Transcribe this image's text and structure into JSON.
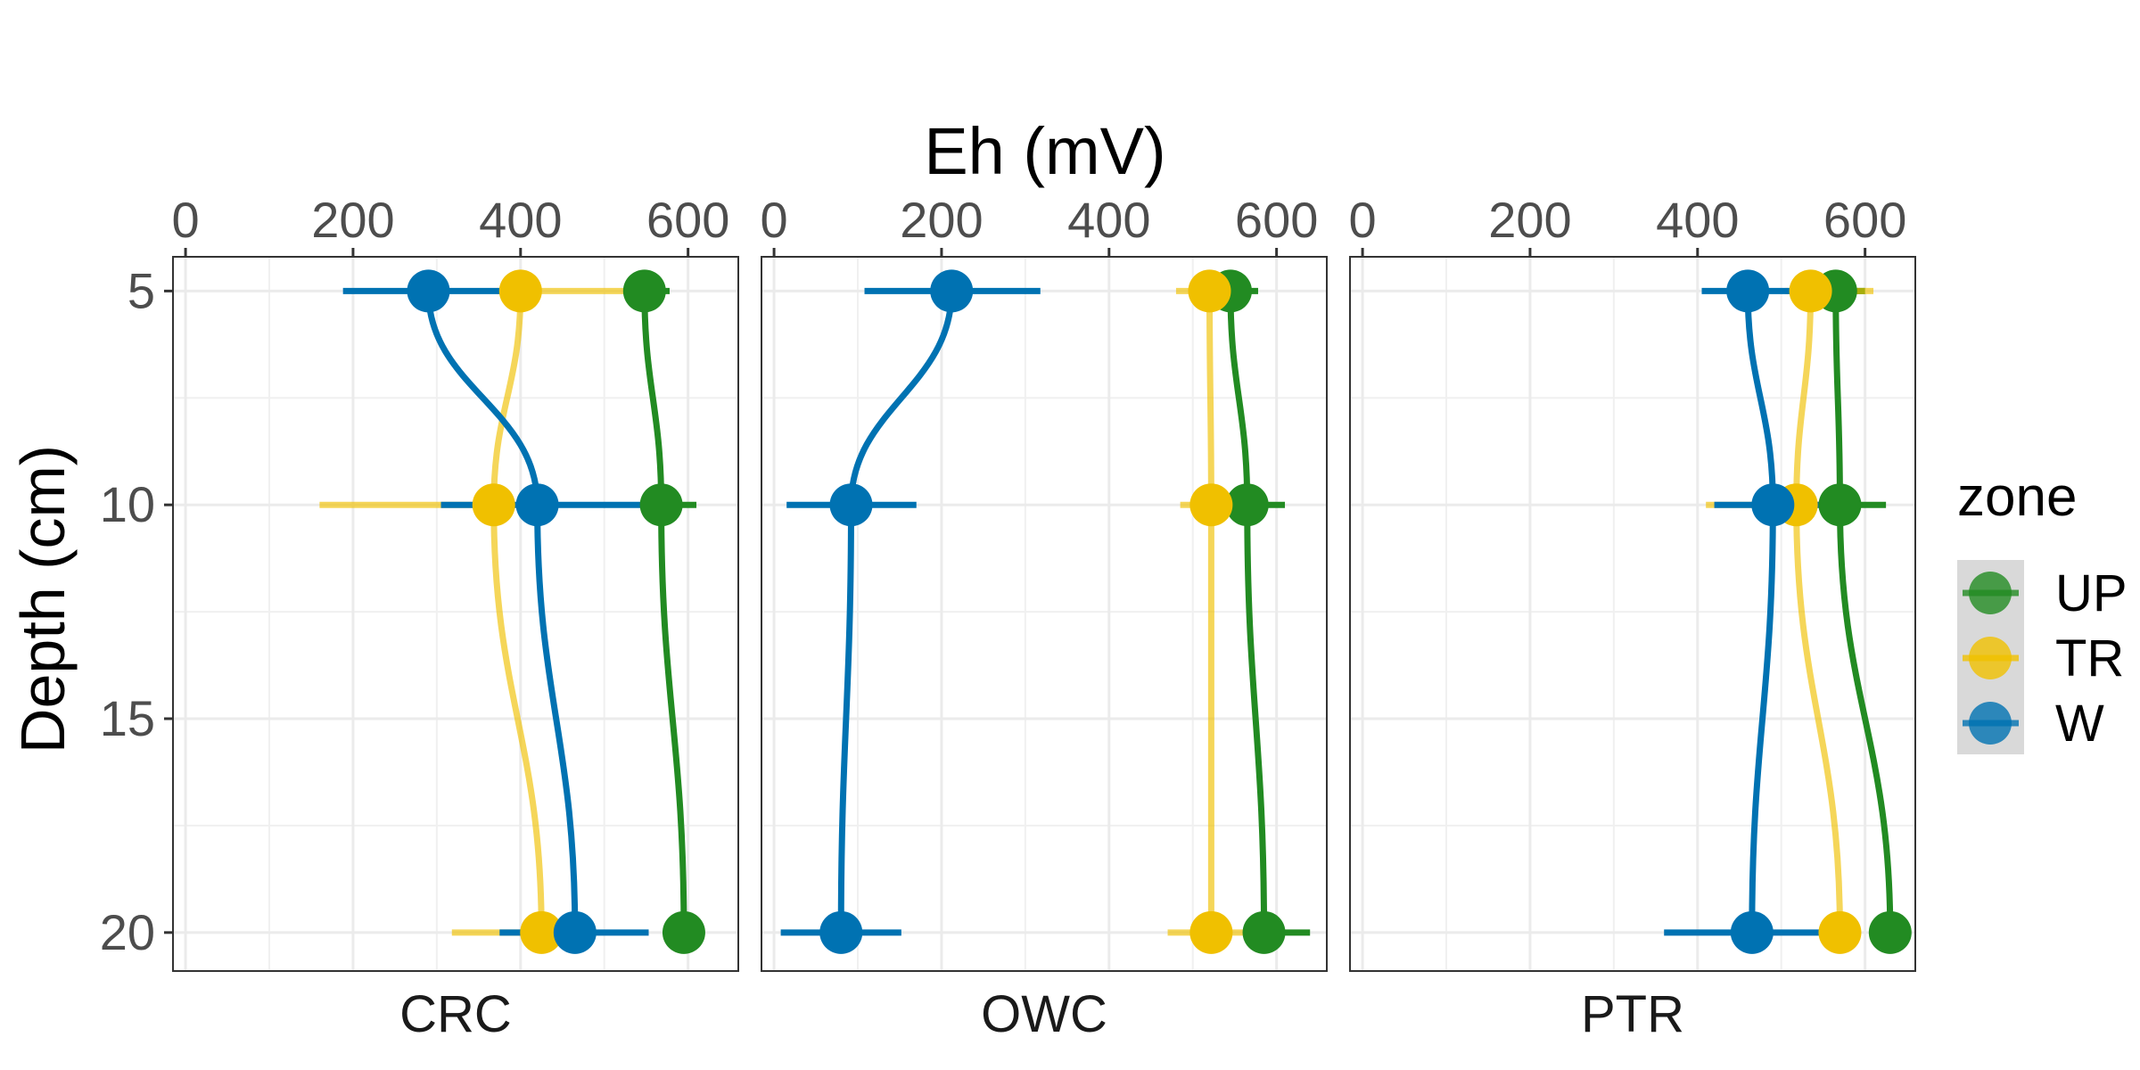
{
  "chart_data": {
    "type": "line",
    "x_title": "Eh (mV)",
    "y_title": "Depth (cm)",
    "xlim": [
      -15,
      660
    ],
    "ylim": [
      4.2,
      20.9
    ],
    "x_ticks": [
      0,
      200,
      400,
      600
    ],
    "y_ticks": [
      5,
      10,
      15,
      20
    ],
    "depths": [
      5,
      10,
      20
    ],
    "legend": {
      "title": "zone",
      "placement": "right",
      "items": [
        {
          "name": "UP",
          "color": "#228b22"
        },
        {
          "name": "TR",
          "color": "#f0c000"
        },
        {
          "name": "W",
          "color": "#0072b2"
        }
      ]
    },
    "facets": [
      {
        "label": "CRC",
        "series": [
          {
            "name": "UP",
            "color": "#228b22",
            "x": [
              548,
              568,
              595
            ],
            "err": [
              [
                528,
                578
              ],
              [
                553,
                610
              ],
              null
            ]
          },
          {
            "name": "TR",
            "color": "#f0c000",
            "x": [
              400,
              368,
              425
            ],
            "err": [
              [
                372,
                530
              ],
              [
                160,
                380
              ],
              [
                318,
                440
              ]
            ]
          },
          {
            "name": "W",
            "color": "#0072b2",
            "x": [
              290,
              420,
              465
            ],
            "err": [
              [
                188,
                400
              ],
              [
                305,
                553
              ],
              [
                375,
                553
              ]
            ]
          }
        ]
      },
      {
        "label": "OWC",
        "series": [
          {
            "name": "UP",
            "color": "#228b22",
            "x": [
              545,
              565,
              585
            ],
            "err": [
              [
                510,
                578
              ],
              [
                525,
                610
              ],
              [
                560,
                640
              ]
            ]
          },
          {
            "name": "TR",
            "color": "#f0c000",
            "x": [
              520,
              522,
              522
            ],
            "err": [
              [
                480,
                560
              ],
              [
                485,
                565
              ],
              [
                470,
                560
              ]
            ]
          },
          {
            "name": "W",
            "color": "#0072b2",
            "x": [
              212,
              92,
              80
            ],
            "err": [
              [
                108,
                318
              ],
              [
                15,
                170
              ],
              [
                8,
                152
              ]
            ]
          }
        ]
      },
      {
        "label": "PTR",
        "series": [
          {
            "name": "UP",
            "color": "#228b22",
            "x": [
              565,
              570,
              630
            ],
            "err": [
              [
                530,
                600
              ],
              [
                555,
                625
              ],
              [
                615,
                645
              ]
            ]
          },
          {
            "name": "TR",
            "color": "#f0c000",
            "x": [
              535,
              518,
              570
            ],
            "err": [
              [
                505,
                610
              ],
              [
                410,
                560
              ],
              [
                545,
                595
              ]
            ]
          },
          {
            "name": "W",
            "color": "#0072b2",
            "x": [
              460,
              490,
              465
            ],
            "err": [
              [
                405,
                520
              ],
              [
                420,
                563
              ],
              [
                360,
                570
              ]
            ]
          }
        ]
      }
    ]
  }
}
